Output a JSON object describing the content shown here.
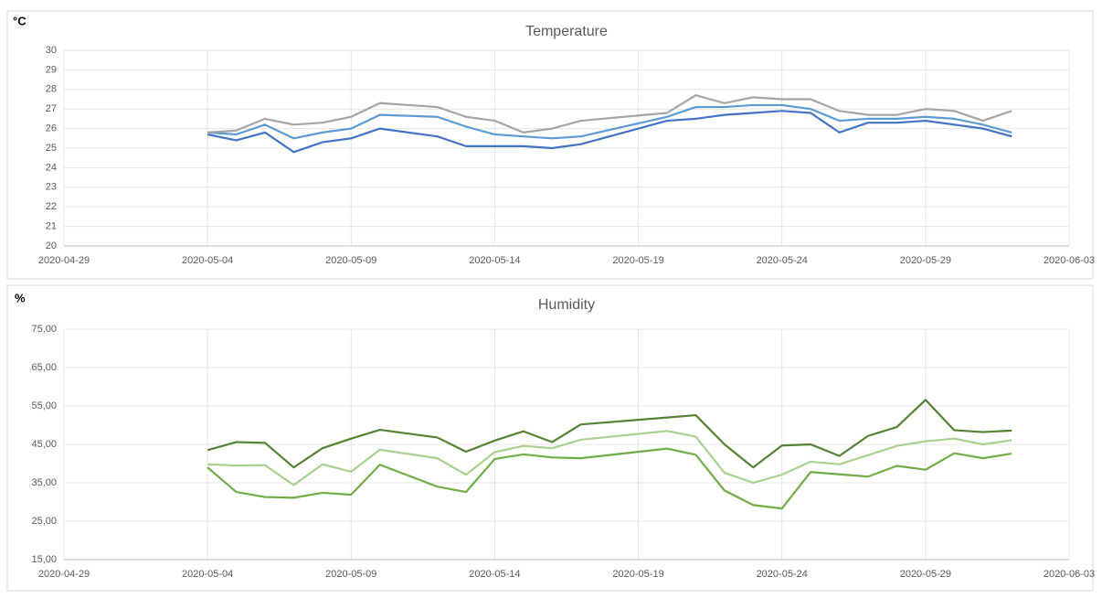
{
  "chart_data": [
    {
      "type": "line",
      "title": "Temperature",
      "ylabel": "°C",
      "x": [
        "2020-05-04",
        "2020-05-05",
        "2020-05-06",
        "2020-05-07",
        "2020-05-08",
        "2020-05-09",
        "2020-05-10",
        "2020-05-12",
        "2020-05-13",
        "2020-05-14",
        "2020-05-15",
        "2020-05-16",
        "2020-05-17",
        "2020-05-20",
        "2020-05-21",
        "2020-05-22",
        "2020-05-23",
        "2020-05-24",
        "2020-05-25",
        "2020-05-26",
        "2020-05-27",
        "2020-05-28",
        "2020-05-29",
        "2020-05-30",
        "2020-05-31",
        "2020-06-01"
      ],
      "series": [
        {
          "color": "#4472c4",
          "values": [
            25.7,
            25.4,
            25.8,
            24.8,
            25.3,
            25.5,
            26.0,
            25.6,
            25.1,
            25.1,
            25.1,
            25.0,
            25.2,
            26.4,
            26.5,
            26.7,
            26.8,
            26.9,
            26.8,
            25.8,
            26.3,
            26.3,
            26.4,
            26.2,
            26.0,
            25.6
          ]
        },
        {
          "color": "#5b9bd5",
          "values": [
            25.8,
            25.7,
            26.2,
            25.5,
            25.8,
            26.0,
            26.7,
            26.6,
            26.1,
            25.7,
            25.6,
            25.5,
            25.6,
            26.6,
            27.1,
            27.1,
            27.2,
            27.2,
            27.0,
            26.4,
            26.5,
            26.5,
            26.6,
            26.5,
            26.2,
            25.8
          ]
        },
        {
          "color": "#a5a5a5",
          "values": [
            25.8,
            25.9,
            26.5,
            26.2,
            26.3,
            26.6,
            27.3,
            27.1,
            26.6,
            26.4,
            25.8,
            26.0,
            26.4,
            26.8,
            27.7,
            27.3,
            27.6,
            27.5,
            27.5,
            26.9,
            26.7,
            26.7,
            27.0,
            26.9,
            26.4,
            26.9
          ]
        }
      ],
      "xlim": [
        "2020-04-29",
        "2020-06-03"
      ],
      "xticks": [
        "2020-04-29",
        "2020-05-04",
        "2020-05-09",
        "2020-05-14",
        "2020-05-19",
        "2020-05-24",
        "2020-05-29",
        "2020-06-03"
      ],
      "ylim": [
        20,
        30
      ],
      "yticks": [
        20,
        21,
        22,
        23,
        24,
        25,
        26,
        27,
        28,
        29,
        30
      ],
      "grid": true
    },
    {
      "type": "line",
      "title": "Humidity",
      "ylabel": "%",
      "x": [
        "2020-05-04",
        "2020-05-05",
        "2020-05-06",
        "2020-05-07",
        "2020-05-08",
        "2020-05-09",
        "2020-05-10",
        "2020-05-12",
        "2020-05-13",
        "2020-05-14",
        "2020-05-15",
        "2020-05-16",
        "2020-05-17",
        "2020-05-20",
        "2020-05-21",
        "2020-05-22",
        "2020-05-23",
        "2020-05-24",
        "2020-05-25",
        "2020-05-26",
        "2020-05-27",
        "2020-05-28",
        "2020-05-29",
        "2020-05-30",
        "2020-05-31",
        "2020-06-01"
      ],
      "series": [
        {
          "color": "#548235",
          "values": [
            43.5,
            45.6,
            45.4,
            39.0,
            44.0,
            46.5,
            48.8,
            46.8,
            43.1,
            46.0,
            48.4,
            45.6,
            50.2,
            52.0,
            52.6,
            45.0,
            39.0,
            44.7,
            45.0,
            42.0,
            47.2,
            49.5,
            56.6,
            48.7,
            48.2,
            48.6
          ]
        },
        {
          "color": "#a9d18e",
          "values": [
            39.8,
            39.5,
            39.6,
            34.4,
            39.8,
            37.9,
            43.6,
            41.4,
            37.1,
            43.0,
            44.6,
            44.0,
            46.2,
            48.5,
            47.0,
            37.6,
            35.0,
            37.1,
            40.5,
            39.8,
            42.2,
            44.6,
            45.8,
            46.5,
            45.0,
            46.1
          ]
        },
        {
          "color": "#70ad47",
          "values": [
            39.0,
            32.6,
            31.3,
            31.1,
            32.4,
            31.9,
            39.7,
            34.0,
            32.6,
            41.2,
            42.4,
            41.6,
            41.4,
            43.9,
            42.3,
            33.0,
            29.2,
            28.3,
            37.8,
            37.2,
            36.6,
            39.4,
            38.4,
            42.7,
            41.4,
            42.6
          ]
        }
      ],
      "xlim": [
        "2020-04-29",
        "2020-06-03"
      ],
      "xticks": [
        "2020-04-29",
        "2020-05-04",
        "2020-05-09",
        "2020-05-14",
        "2020-05-19",
        "2020-05-24",
        "2020-05-29",
        "2020-06-03"
      ],
      "ylim": [
        15,
        75
      ],
      "yticks": [
        {
          "value": 15,
          "label": "15,00"
        },
        {
          "value": 25,
          "label": "25,00"
        },
        {
          "value": 35,
          "label": "35,00"
        },
        {
          "value": 45,
          "label": "45,00"
        },
        {
          "value": 55,
          "label": "55,00"
        },
        {
          "value": 65,
          "label": "65,00"
        },
        {
          "value": 75,
          "label": "75,00"
        }
      ],
      "grid": true
    }
  ]
}
